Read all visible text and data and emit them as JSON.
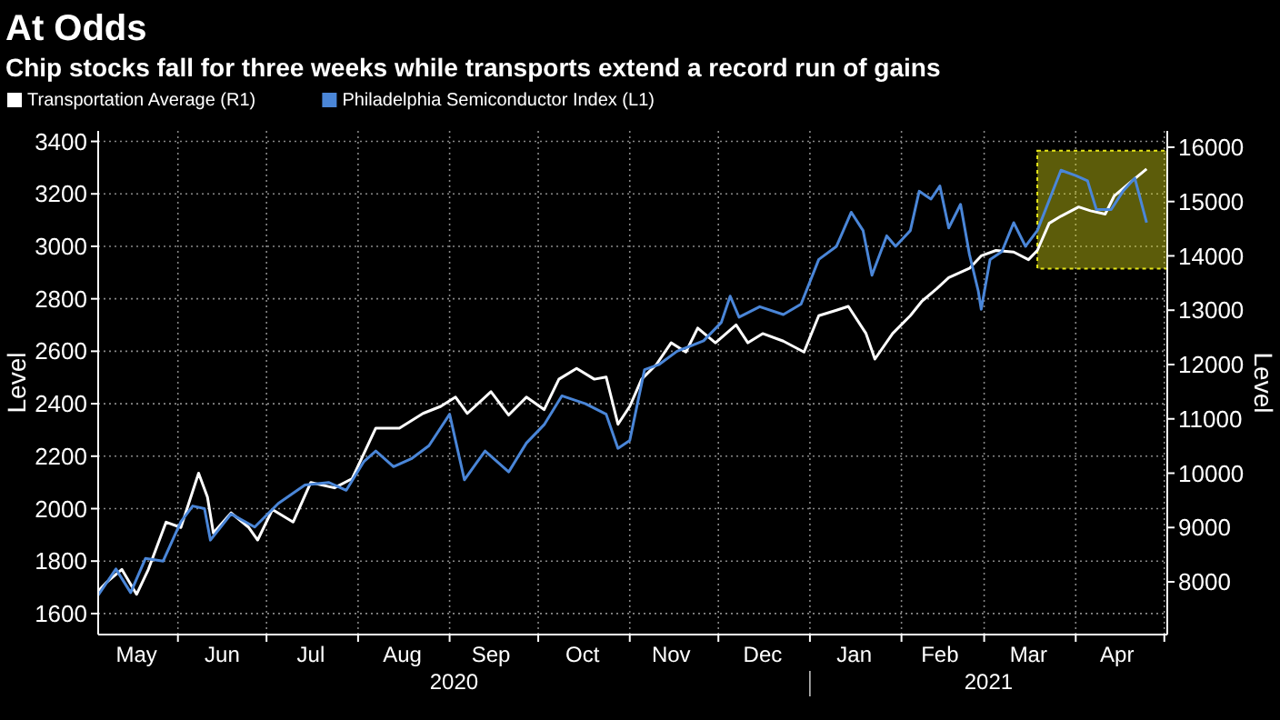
{
  "chart_data": {
    "type": "line",
    "title": "At Odds",
    "subtitle": "Chip stocks fall for three weeks while transports extend a record run of gains",
    "ylabel": "Level",
    "y2label": "Level",
    "legend": "top left",
    "grid": true,
    "xlim": [
      "2020-05-05",
      "2021-05-02"
    ],
    "xticks": [
      {
        "value": "2020-05-18",
        "label": "May"
      },
      {
        "value": "2020-06-01",
        "label": null
      },
      {
        "value": "2020-06-16",
        "label": "Jun"
      },
      {
        "value": "2020-07-01",
        "label": null
      },
      {
        "value": "2020-07-16",
        "label": "Jul"
      },
      {
        "value": "2020-08-01",
        "label": null
      },
      {
        "value": "2020-08-16",
        "label": "Aug"
      },
      {
        "value": "2020-09-01",
        "label": null
      },
      {
        "value": "2020-09-15",
        "label": "Sep"
      },
      {
        "value": "2020-10-01",
        "label": null
      },
      {
        "value": "2020-10-16",
        "label": "Oct"
      },
      {
        "value": "2020-11-01",
        "label": null
      },
      {
        "value": "2020-11-15",
        "label": "Nov"
      },
      {
        "value": "2020-12-01",
        "label": null
      },
      {
        "value": "2020-12-16",
        "label": "Dec"
      },
      {
        "value": "2021-01-01",
        "label": null
      },
      {
        "value": "2021-01-16",
        "label": "Jan"
      },
      {
        "value": "2021-02-01",
        "label": null
      },
      {
        "value": "2021-02-14",
        "label": "Feb"
      },
      {
        "value": "2021-03-01",
        "label": null
      },
      {
        "value": "2021-03-16",
        "label": "Mar"
      },
      {
        "value": "2021-04-01",
        "label": null
      },
      {
        "value": "2021-04-15",
        "label": "Apr"
      },
      {
        "value": "2021-05-01",
        "label": null
      }
    ],
    "ylim": [
      1520,
      3440
    ],
    "yticks": [
      1600,
      1800,
      2000,
      2200,
      2400,
      2600,
      2800,
      3000,
      3200,
      3400
    ],
    "y2lim": [
      7030,
      16300
    ],
    "y2ticks": [
      8000,
      9000,
      10000,
      11000,
      12000,
      13000,
      14000,
      15000,
      16000
    ],
    "series": [
      {
        "name": "Transportation Average (R1)",
        "color": "#ffffff",
        "axis": "y2",
        "x": [
          "2020-05-05",
          "2020-05-08",
          "2020-05-13",
          "2020-05-18",
          "2020-05-22",
          "2020-05-28",
          "2020-06-02",
          "2020-06-08",
          "2020-06-11",
          "2020-06-13",
          "2020-06-19",
          "2020-06-25",
          "2020-06-28",
          "2020-07-03",
          "2020-07-10",
          "2020-07-16",
          "2020-07-24",
          "2020-07-30",
          "2020-08-07",
          "2020-08-15",
          "2020-08-23",
          "2020-08-29",
          "2020-09-03",
          "2020-09-07",
          "2020-09-15",
          "2020-09-21",
          "2020-09-27",
          "2020-10-03",
          "2020-10-08",
          "2020-10-14",
          "2020-10-20",
          "2020-10-24",
          "2020-10-28",
          "2020-11-01",
          "2020-11-05",
          "2020-11-10",
          "2020-11-15",
          "2020-11-20",
          "2020-11-24",
          "2020-11-30",
          "2020-12-07",
          "2020-12-11",
          "2020-12-16",
          "2020-12-23",
          "2020-12-30",
          "2021-01-04",
          "2021-01-10",
          "2021-01-14",
          "2021-01-20",
          "2021-01-23",
          "2021-01-29",
          "2021-02-04",
          "2021-02-08",
          "2021-02-13",
          "2021-02-17",
          "2021-02-24",
          "2021-02-28",
          "2021-03-05",
          "2021-03-11",
          "2021-03-16",
          "2021-03-19",
          "2021-03-23",
          "2021-03-27",
          "2021-04-02",
          "2021-04-06",
          "2021-04-11",
          "2021-04-14",
          "2021-04-19",
          "2021-04-25"
        ],
        "values": [
          7830,
          8000,
          8230,
          7770,
          8230,
          9100,
          9000,
          10000,
          9560,
          8900,
          9270,
          9000,
          8770,
          9330,
          9100,
          9830,
          9730,
          9900,
          10830,
          10830,
          11100,
          11230,
          11400,
          11100,
          11500,
          11070,
          11400,
          11170,
          11730,
          11930,
          11730,
          11770,
          10900,
          11230,
          11730,
          12000,
          12400,
          12230,
          12670,
          12400,
          12730,
          12400,
          12570,
          12430,
          12230,
          12900,
          13000,
          13070,
          12570,
          12100,
          12570,
          12900,
          13170,
          13400,
          13600,
          13770,
          14000,
          14100,
          14070,
          13930,
          14100,
          14600,
          14730,
          14900,
          14830,
          14770,
          15100,
          15330,
          15600
        ]
      },
      {
        "name": "Philadelphia Semiconductor Index (L1)",
        "color": "#4a86d8",
        "x": [
          "2020-05-05",
          "2020-05-11",
          "2020-05-16",
          "2020-05-21",
          "2020-05-27",
          "2020-06-02",
          "2020-06-06",
          "2020-06-10",
          "2020-06-12",
          "2020-06-19",
          "2020-06-27",
          "2020-07-05",
          "2020-07-14",
          "2020-07-22",
          "2020-07-28",
          "2020-08-03",
          "2020-08-07",
          "2020-08-13",
          "2020-08-19",
          "2020-08-25",
          "2020-09-01",
          "2020-09-06",
          "2020-09-13",
          "2020-09-21",
          "2020-09-27",
          "2020-10-03",
          "2020-10-09",
          "2020-10-17",
          "2020-10-24",
          "2020-10-28",
          "2020-11-01",
          "2020-11-06",
          "2020-11-11",
          "2020-11-17",
          "2020-11-26",
          "2020-12-02",
          "2020-12-05",
          "2020-12-08",
          "2020-12-15",
          "2020-12-23",
          "2020-12-29",
          "2021-01-04",
          "2021-01-10",
          "2021-01-15",
          "2021-01-19",
          "2021-01-22",
          "2021-01-27",
          "2021-01-30",
          "2021-02-04",
          "2021-02-07",
          "2021-02-11",
          "2021-02-14",
          "2021-02-17",
          "2021-02-21",
          "2021-02-24",
          "2021-02-27",
          "2021-02-28",
          "2021-03-03",
          "2021-03-07",
          "2021-03-11",
          "2021-03-15",
          "2021-03-19",
          "2021-03-27",
          "2021-04-01",
          "2021-04-05",
          "2021-04-08",
          "2021-04-13",
          "2021-04-17",
          "2021-04-21",
          "2021-04-25"
        ],
        "values": [
          1670,
          1770,
          1680,
          1810,
          1800,
          1950,
          2010,
          2000,
          1880,
          1980,
          1930,
          2020,
          2090,
          2100,
          2070,
          2180,
          2220,
          2160,
          2190,
          2240,
          2360,
          2110,
          2220,
          2140,
          2250,
          2320,
          2430,
          2400,
          2360,
          2230,
          2260,
          2530,
          2550,
          2600,
          2640,
          2710,
          2810,
          2730,
          2770,
          2740,
          2780,
          2950,
          3000,
          3130,
          3060,
          2890,
          3040,
          3000,
          3060,
          3210,
          3180,
          3230,
          3070,
          3160,
          2970,
          2830,
          2760,
          2950,
          2980,
          3090,
          3000,
          3060,
          3290,
          3270,
          3250,
          3140,
          3140,
          3210,
          3260,
          3090
        ]
      }
    ],
    "bands": [
      {
        "axis": "x",
        "from": "2021-03-19",
        "to": "2021-05-02",
        "color": "#e6e619"
      }
    ],
    "annotations": [
      "2020",
      "2021"
    ]
  }
}
